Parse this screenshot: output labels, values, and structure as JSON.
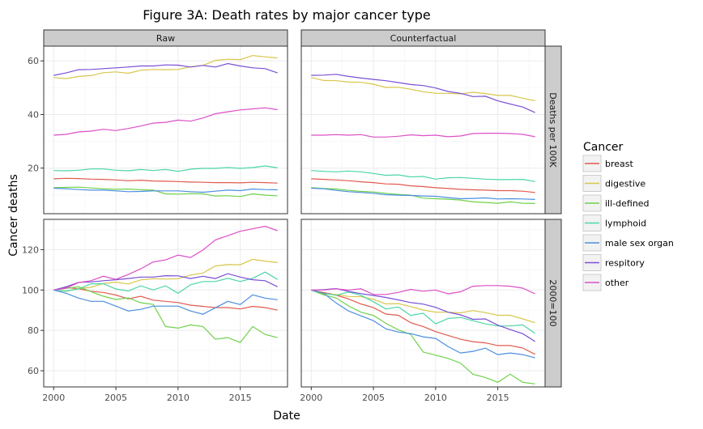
{
  "chart_data": {
    "type": "line",
    "title": "Figure 3A: Death rates by major cancer type",
    "xlabel": "Date",
    "ylabel": "Cancer deaths",
    "facet_cols": [
      "Raw",
      "Counterfactual"
    ],
    "facet_rows": [
      "Deaths per 100K",
      "2000=100"
    ],
    "xlim": [
      1999.2,
      2018.8
    ],
    "x_ticks": [
      2000,
      2005,
      2010,
      2015
    ],
    "row_ylims": [
      [
        3,
        65.5
      ],
      [
        52,
        135
      ]
    ],
    "row_yticks": [
      [
        20,
        40,
        60
      ],
      [
        60,
        80,
        100,
        120
      ]
    ],
    "grid": true,
    "legend": {
      "title": "Cancer",
      "position": "right",
      "entries": [
        {
          "name": "breast",
          "color": "#e05a4f"
        },
        {
          "name": "digestive",
          "color": "#d8c64a"
        },
        {
          "name": "ill-defined",
          "color": "#6fd24a"
        },
        {
          "name": "lymphoid",
          "color": "#4bd6a5"
        },
        {
          "name": "male sex organ",
          "color": "#4c8fe0"
        },
        {
          "name": "respitory",
          "color": "#7a4fd6"
        },
        {
          "name": "other",
          "color": "#dd4fc6"
        }
      ]
    },
    "x": [
      2000,
      2001,
      2002,
      2003,
      2004,
      2005,
      2006,
      2007,
      2008,
      2009,
      2010,
      2011,
      2012,
      2013,
      2014,
      2015,
      2016,
      2017,
      2018
    ],
    "panels": [
      {
        "row": 0,
        "col": 0,
        "series": [
          {
            "name": "breast",
            "values": [
              16.0,
              16.2,
              16.1,
              15.9,
              15.8,
              15.6,
              15.3,
              15.5,
              15.2,
              15.1,
              15.0,
              14.8,
              14.7,
              14.6,
              14.6,
              14.5,
              14.7,
              14.6,
              14.4
            ]
          },
          {
            "name": "digestive",
            "values": [
              53.8,
              53.4,
              54.2,
              54.5,
              55.6,
              55.9,
              55.4,
              56.5,
              56.8,
              56.7,
              56.8,
              57.8,
              58.3,
              60.2,
              60.6,
              60.5,
              62.0,
              61.5,
              61.1
            ]
          },
          {
            "name": "ill-defined",
            "values": [
              12.7,
              12.8,
              12.9,
              12.6,
              12.3,
              12.1,
              12.2,
              11.9,
              11.8,
              10.4,
              10.3,
              10.5,
              10.4,
              9.6,
              9.7,
              9.4,
              10.4,
              9.9,
              9.7
            ]
          },
          {
            "name": "lymphoid",
            "values": [
              19.1,
              19.0,
              19.2,
              19.7,
              19.7,
              19.2,
              19.0,
              19.5,
              19.1,
              19.5,
              18.8,
              19.6,
              19.9,
              19.9,
              20.2,
              19.9,
              20.2,
              20.8,
              20.1
            ]
          },
          {
            "name": "male sex organ",
            "values": [
              12.5,
              12.3,
              12.0,
              11.8,
              11.8,
              11.5,
              11.2,
              11.3,
              11.5,
              11.5,
              11.5,
              11.2,
              11.0,
              11.4,
              11.8,
              11.6,
              12.2,
              12.0,
              11.9
            ]
          },
          {
            "name": "respitory",
            "values": [
              54.6,
              55.5,
              56.7,
              56.8,
              57.1,
              57.4,
              57.7,
              58.1,
              58.1,
              58.5,
              58.4,
              57.7,
              58.3,
              57.7,
              59.0,
              58.1,
              57.4,
              57.1,
              55.5
            ]
          },
          {
            "name": "other",
            "values": [
              32.3,
              32.6,
              33.5,
              33.8,
              34.5,
              34.0,
              34.8,
              35.7,
              36.8,
              37.1,
              37.9,
              37.5,
              38.7,
              40.3,
              41.0,
              41.7,
              42.1,
              42.5,
              41.8
            ]
          }
        ]
      },
      {
        "row": 0,
        "col": 1,
        "series": [
          {
            "name": "breast",
            "values": [
              16.0,
              15.8,
              15.6,
              15.3,
              14.9,
              14.6,
              14.1,
              14.0,
              13.4,
              13.1,
              12.7,
              12.4,
              12.1,
              11.9,
              11.8,
              11.6,
              11.6,
              11.4,
              10.9
            ]
          },
          {
            "name": "digestive",
            "values": [
              53.8,
              52.7,
              52.6,
              52.1,
              52.0,
              51.3,
              50.1,
              50.2,
              49.4,
              48.5,
              47.9,
              47.9,
              47.7,
              48.3,
              47.8,
              47.1,
              47.1,
              46.1,
              45.1
            ]
          },
          {
            "name": "ill-defined",
            "values": [
              12.7,
              12.4,
              12.2,
              11.7,
              11.3,
              11.1,
              10.6,
              10.2,
              9.9,
              8.8,
              8.6,
              8.4,
              8.1,
              7.4,
              7.2,
              6.9,
              7.4,
              6.9,
              6.8
            ]
          },
          {
            "name": "lymphoid",
            "values": [
              19.1,
              18.8,
              18.6,
              18.9,
              18.6,
              18.0,
              17.3,
              17.5,
              16.7,
              16.9,
              15.9,
              16.4,
              16.5,
              16.2,
              15.9,
              15.7,
              15.7,
              15.8,
              15.0
            ]
          },
          {
            "name": "male sex organ",
            "values": [
              12.5,
              12.3,
              11.7,
              11.2,
              10.9,
              10.6,
              10.1,
              9.9,
              9.8,
              9.6,
              9.5,
              9.0,
              8.6,
              8.7,
              8.9,
              8.5,
              8.6,
              8.5,
              8.3
            ]
          },
          {
            "name": "respitory",
            "values": [
              54.6,
              54.7,
              55.0,
              54.2,
              53.6,
              53.1,
              52.6,
              51.9,
              51.2,
              50.8,
              49.9,
              48.6,
              47.9,
              46.7,
              46.8,
              45.1,
              43.9,
              42.8,
              40.7
            ]
          },
          {
            "name": "other",
            "values": [
              32.3,
              32.3,
              32.5,
              32.3,
              32.5,
              31.6,
              31.6,
              31.9,
              32.4,
              32.1,
              32.3,
              31.7,
              32.0,
              32.9,
              33.0,
              33.0,
              32.9,
              32.6,
              31.7
            ]
          }
        ]
      },
      {
        "row": 1,
        "col": 0,
        "series": [
          {
            "name": "breast",
            "values": [
              100,
              101.3,
              100.6,
              99.4,
              98.8,
              97.5,
              95.6,
              96.9,
              95.0,
              94.4,
              93.8,
              92.5,
              91.9,
              91.3,
              91.3,
              90.6,
              91.9,
              91.3,
              90.0
            ]
          },
          {
            "name": "digestive",
            "values": [
              100,
              99.3,
              100.7,
              101.3,
              103.3,
              103.9,
              103.0,
              105.0,
              105.6,
              105.4,
              105.6,
              107.4,
              108.4,
              111.9,
              112.6,
              112.5,
              115.2,
              114.3,
              113.6
            ]
          },
          {
            "name": "ill-defined",
            "values": [
              100,
              100.8,
              101.6,
              99.2,
              96.9,
              95.3,
              96.1,
              93.7,
              92.9,
              81.9,
              81.1,
              82.7,
              81.9,
              75.6,
              76.4,
              74.0,
              81.9,
              78.0,
              76.4
            ]
          },
          {
            "name": "lymphoid",
            "values": [
              100,
              99.5,
              100.5,
              103.1,
              103.1,
              100.5,
              99.5,
              102.1,
              100.0,
              102.1,
              98.4,
              102.6,
              104.2,
              104.2,
              105.8,
              104.2,
              105.8,
              108.9,
              105.2
            ]
          },
          {
            "name": "male sex organ",
            "values": [
              100,
              98.4,
              96.0,
              94.4,
              94.4,
              92.0,
              89.6,
              90.4,
              92.0,
              92.0,
              92.0,
              89.6,
              88.0,
              91.2,
              94.4,
              92.8,
              97.6,
              96.0,
              95.2
            ]
          },
          {
            "name": "respitory",
            "values": [
              100,
              101.6,
              103.8,
              104.0,
              104.6,
              105.1,
              105.7,
              106.4,
              106.4,
              107.1,
              107.0,
              105.7,
              106.8,
              105.7,
              108.1,
              106.4,
              105.1,
              104.6,
              101.6
            ]
          },
          {
            "name": "other",
            "values": [
              100,
              100.9,
              103.7,
              104.6,
              106.8,
              105.3,
              107.7,
              110.5,
              113.9,
              114.9,
              117.3,
              116.1,
              119.8,
              124.8,
              126.9,
              129.1,
              130.3,
              131.6,
              129.4
            ]
          }
        ]
      },
      {
        "row": 1,
        "col": 1,
        "series": [
          {
            "name": "breast",
            "values": [
              100,
              98.8,
              97.5,
              95.6,
              93.1,
              91.3,
              88.1,
              87.5,
              83.8,
              81.9,
              79.4,
              77.5,
              75.6,
              74.4,
              73.8,
              72.5,
              72.5,
              71.3,
              68.1
            ]
          },
          {
            "name": "digestive",
            "values": [
              100,
              98.0,
              97.8,
              96.8,
              96.7,
              95.4,
              93.1,
              93.3,
              91.8,
              90.1,
              89.0,
              89.0,
              88.7,
              89.8,
              88.8,
              87.5,
              87.5,
              85.7,
              83.8
            ]
          },
          {
            "name": "ill-defined",
            "values": [
              100,
              97.6,
              96.1,
              92.1,
              89.0,
              87.4,
              83.5,
              80.3,
              78.0,
              69.3,
              67.7,
              66.1,
              63.8,
              58.3,
              56.7,
              54.3,
              58.3,
              54.3,
              53.5
            ]
          },
          {
            "name": "lymphoid",
            "values": [
              100,
              98.4,
              97.4,
              99.0,
              97.4,
              94.2,
              90.6,
              91.6,
              87.4,
              88.5,
              83.2,
              85.9,
              86.4,
              84.8,
              83.2,
              82.2,
              82.2,
              82.7,
              78.5
            ]
          },
          {
            "name": "male sex organ",
            "values": [
              100,
              98.4,
              93.6,
              89.6,
              87.2,
              84.8,
              80.8,
              79.2,
              78.4,
              76.8,
              76.0,
              72.0,
              68.8,
              69.6,
              71.2,
              68.0,
              68.8,
              68.0,
              66.4
            ]
          },
          {
            "name": "respitory",
            "values": [
              100,
              100.2,
              100.7,
              99.3,
              98.2,
              97.3,
              96.3,
              95.1,
              93.8,
              93.0,
              91.4,
              89.0,
              87.7,
              85.5,
              85.7,
              82.6,
              80.4,
              78.4,
              74.5
            ]
          },
          {
            "name": "other",
            "values": [
              100,
              100.0,
              100.6,
              100.0,
              100.6,
              97.8,
              97.8,
              98.8,
              100.3,
              99.4,
              100.0,
              98.1,
              99.1,
              101.9,
              102.2,
              102.2,
              101.9,
              100.9,
              98.1
            ]
          }
        ]
      }
    ]
  }
}
